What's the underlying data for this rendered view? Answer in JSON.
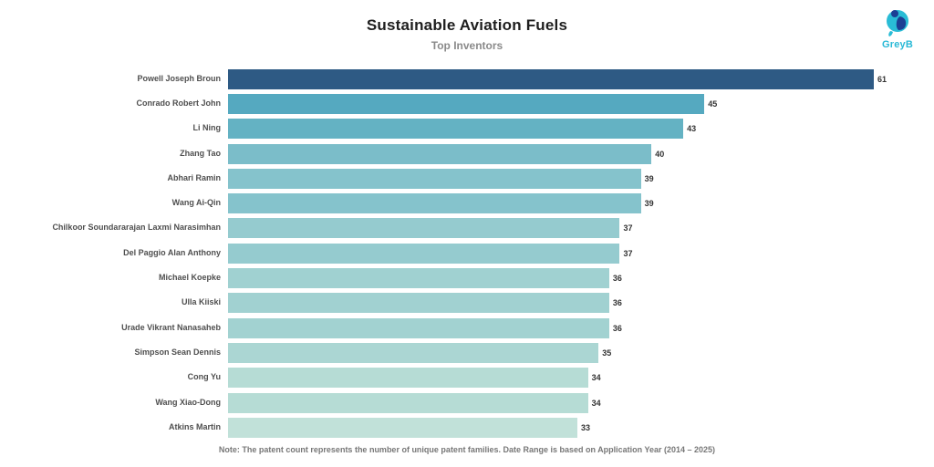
{
  "header": {
    "title": "Sustainable Aviation Fuels",
    "subtitle": "Top Inventors"
  },
  "logo": {
    "text": "GreyB",
    "primary_color": "#29bcd6",
    "accent_color": "#1c3f94"
  },
  "note": "Note: The patent count represents the number of unique patent families. Date Range is based on Application Year (2014 – 2025)",
  "chart_data": {
    "type": "bar",
    "orientation": "horizontal",
    "title": "Sustainable Aviation Fuels",
    "subtitle": "Top Inventors",
    "xlabel": "",
    "ylabel": "",
    "xlim": [
      0,
      63
    ],
    "grid": false,
    "legend": false,
    "value_labels_shown": true,
    "categories": [
      "Powell Joseph Broun",
      "Conrado Robert John",
      "Li Ning",
      "Zhang Tao",
      "Abhari Ramin",
      "Wang Ai-Qin",
      "Chilkoor Soundararajan Laxmi Narasimhan",
      "Del Paggio Alan Anthony",
      "Michael Koepke",
      "Ulla Kiiski",
      "Urade Vikrant Nanasaheb",
      "Simpson Sean Dennis",
      "Cong Yu",
      "Wang Xiao-Dong",
      "Atkins Martin"
    ],
    "values": [
      61,
      45,
      43,
      40,
      39,
      39,
      37,
      37,
      36,
      36,
      36,
      35,
      34,
      34,
      33
    ],
    "bar_colors": [
      "#2E5A84",
      "#55A9C0",
      "#64B2C3",
      "#7BBDC9",
      "#85C3CC",
      "#85C3CC",
      "#95CBCF",
      "#95CBCF",
      "#A0D1D1",
      "#A1D1D1",
      "#A2D2D1",
      "#ABD6D3",
      "#B6DCD5",
      "#B6DCD5",
      "#C1E1D9"
    ]
  }
}
